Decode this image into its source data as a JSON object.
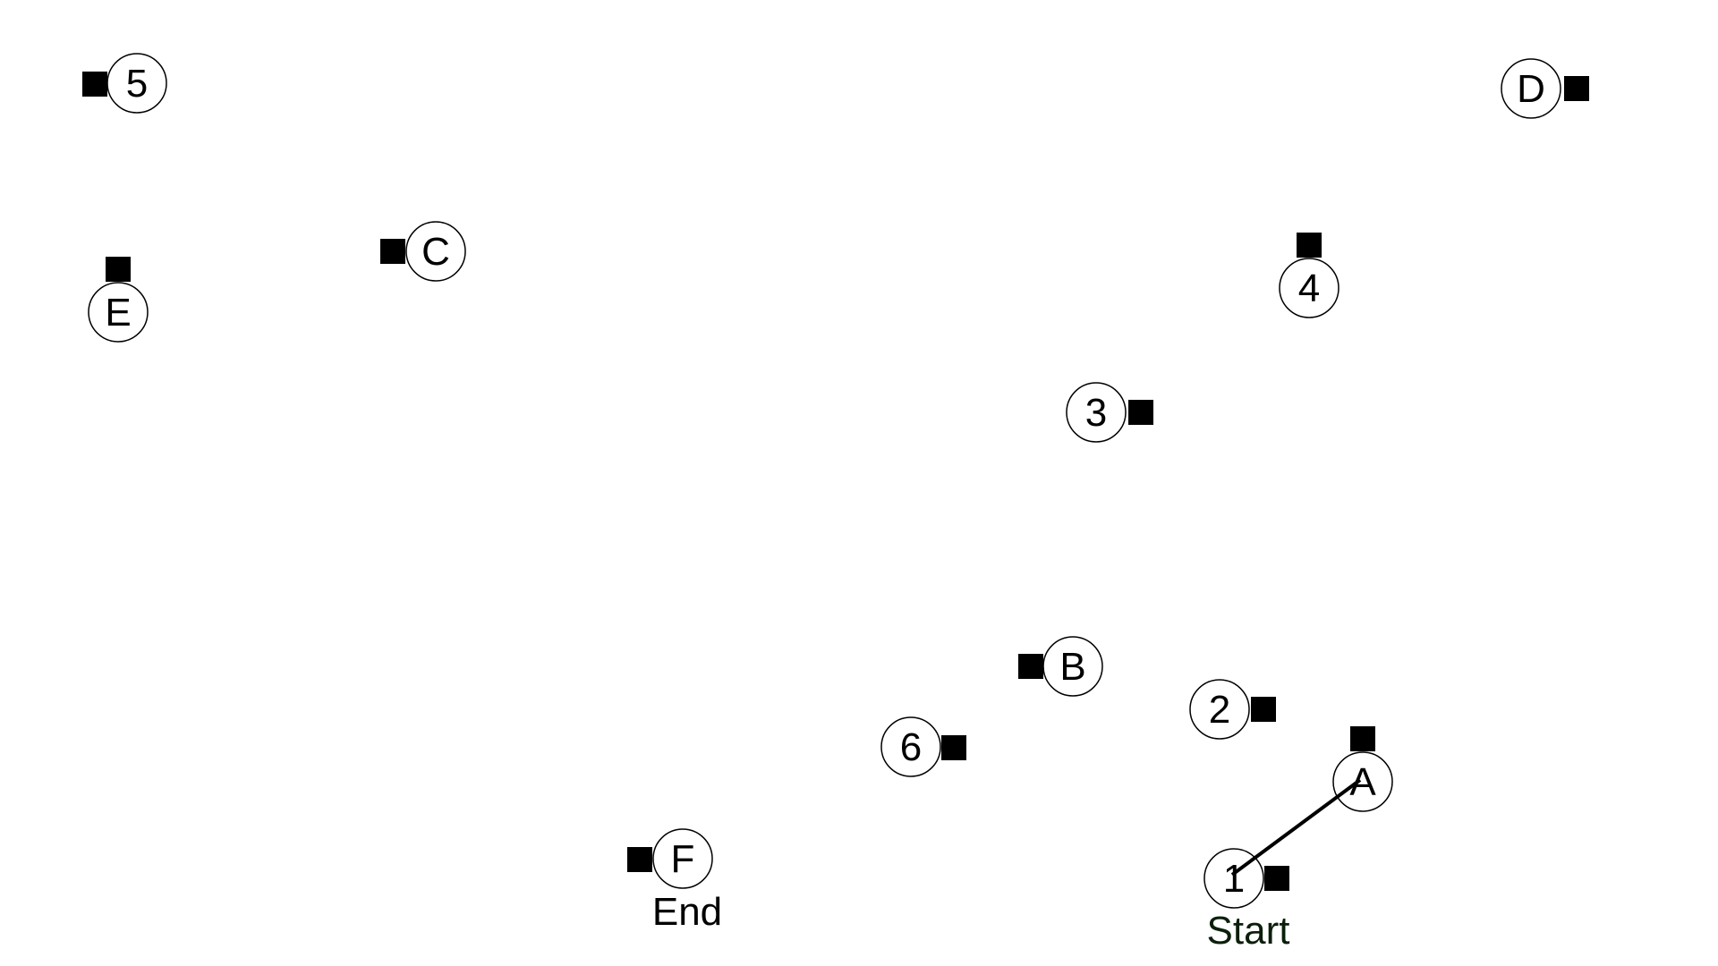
{
  "diagram": {
    "title": "",
    "nodes": [
      {
        "id": "n5",
        "label": "5"
      },
      {
        "id": "nD",
        "label": "D"
      },
      {
        "id": "nC",
        "label": "C"
      },
      {
        "id": "nE",
        "label": "E"
      },
      {
        "id": "n4",
        "label": "4"
      },
      {
        "id": "n3",
        "label": "3"
      },
      {
        "id": "nB",
        "label": "B"
      },
      {
        "id": "n2",
        "label": "2"
      },
      {
        "id": "n6",
        "label": "6"
      },
      {
        "id": "nA",
        "label": "A"
      },
      {
        "id": "nF",
        "label": "F"
      },
      {
        "id": "n1",
        "label": "1"
      }
    ],
    "edges": [
      {
        "from": "1",
        "to": "A"
      }
    ],
    "start_label": "Start",
    "end_label": "End",
    "colors": {
      "stroke": "#000000",
      "fill": "#ffffff",
      "marker": "#000000",
      "start_text": "#0b1f0b",
      "end_text": "#000000"
    }
  }
}
